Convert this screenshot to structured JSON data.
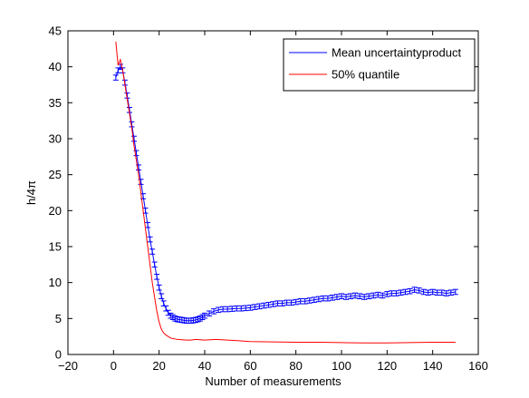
{
  "chart_data": {
    "type": "line",
    "xlabel": "Number of measurements",
    "ylabel": "h/4π",
    "xlim": [
      -20,
      160
    ],
    "ylim": [
      0,
      45
    ],
    "xticks": [
      -20,
      0,
      20,
      40,
      60,
      80,
      100,
      120,
      140,
      160
    ],
    "yticks": [
      0,
      5,
      10,
      15,
      20,
      25,
      30,
      35,
      40,
      45
    ],
    "grid": false,
    "legend_placement": "top-right",
    "series": [
      {
        "name": "Mean uncertaintyproduct",
        "color": "#0000ff",
        "errorbars": true,
        "errorbar_halfwidth": 0.35,
        "x": [
          1,
          2,
          3,
          4,
          5,
          6,
          7,
          8,
          9,
          10,
          11,
          12,
          13,
          14,
          15,
          16,
          17,
          18,
          19,
          20,
          21,
          22,
          23,
          24,
          25,
          26,
          27,
          28,
          29,
          30,
          31,
          32,
          33,
          34,
          35,
          36,
          37,
          38,
          39,
          40,
          42,
          44,
          46,
          48,
          50,
          52,
          54,
          56,
          58,
          60,
          62,
          64,
          66,
          68,
          70,
          72,
          74,
          76,
          78,
          80,
          82,
          84,
          86,
          88,
          90,
          92,
          94,
          96,
          98,
          100,
          102,
          104,
          106,
          108,
          110,
          112,
          114,
          116,
          118,
          120,
          122,
          124,
          126,
          128,
          130,
          132,
          134,
          136,
          138,
          140,
          142,
          144,
          146,
          148,
          150
        ],
        "y": [
          38.5,
          39.5,
          40.0,
          39.5,
          37.8,
          36.0,
          34.0,
          32.0,
          30.0,
          28.0,
          26.0,
          24.0,
          22.0,
          20.0,
          18.0,
          16.0,
          14.3,
          12.5,
          10.8,
          9.3,
          8.1,
          7.1,
          6.4,
          5.8,
          5.4,
          5.2,
          5.0,
          4.9,
          4.85,
          4.8,
          4.75,
          4.7,
          4.7,
          4.7,
          4.75,
          4.8,
          4.9,
          5.0,
          5.2,
          5.4,
          5.7,
          6.0,
          6.2,
          6.3,
          6.3,
          6.35,
          6.4,
          6.4,
          6.45,
          6.5,
          6.6,
          6.7,
          6.8,
          6.9,
          7.0,
          7.1,
          7.1,
          7.2,
          7.2,
          7.3,
          7.4,
          7.4,
          7.5,
          7.6,
          7.7,
          7.8,
          7.8,
          7.9,
          8.0,
          8.1,
          8.0,
          8.1,
          8.2,
          8.1,
          8.0,
          8.1,
          8.2,
          8.3,
          8.2,
          8.4,
          8.5,
          8.5,
          8.6,
          8.7,
          8.8,
          9.0,
          8.9,
          8.7,
          8.6,
          8.7,
          8.6,
          8.6,
          8.5,
          8.6,
          8.7
        ]
      },
      {
        "name": "50% quantile",
        "color": "#ff0000",
        "errorbars": false,
        "x": [
          1,
          2,
          3,
          4,
          5,
          6,
          7,
          8,
          9,
          10,
          11,
          12,
          13,
          14,
          15,
          16,
          17,
          18,
          19,
          20,
          21,
          22,
          23,
          24,
          25,
          26,
          27,
          28,
          30,
          32,
          34,
          36,
          38,
          40,
          45,
          50,
          55,
          60,
          70,
          80,
          90,
          100,
          110,
          120,
          130,
          140,
          150
        ],
        "y": [
          43.5,
          40.2,
          41.0,
          39.5,
          37.5,
          35.5,
          33.5,
          31.5,
          29.0,
          27.0,
          25.0,
          22.5,
          20.0,
          17.5,
          15.0,
          12.5,
          10.0,
          8.0,
          6.0,
          4.5,
          3.5,
          3.0,
          2.7,
          2.5,
          2.3,
          2.2,
          2.15,
          2.1,
          2.05,
          2.0,
          2.0,
          2.1,
          2.05,
          2.0,
          2.1,
          2.0,
          1.9,
          1.8,
          1.75,
          1.7,
          1.7,
          1.65,
          1.6,
          1.6,
          1.65,
          1.7,
          1.7
        ]
      }
    ]
  }
}
